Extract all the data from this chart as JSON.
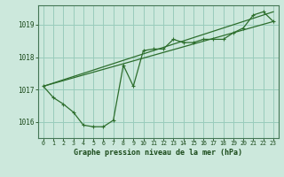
{
  "title": "Graphe pression niveau de la mer (hPa)",
  "bg_color": "#cce8dc",
  "grid_color": "#99ccbb",
  "line_color": "#2d6e2d",
  "marker_color": "#2d6e2d",
  "ylim": [
    1015.5,
    1019.6
  ],
  "yticks": [
    1016,
    1017,
    1018,
    1019
  ],
  "xlim": [
    -0.5,
    23.5
  ],
  "xticks": [
    0,
    1,
    2,
    3,
    4,
    5,
    6,
    7,
    8,
    9,
    10,
    11,
    12,
    13,
    14,
    15,
    16,
    17,
    18,
    19,
    20,
    21,
    22,
    23
  ],
  "series1": {
    "x": [
      0,
      1,
      2,
      3,
      4,
      5,
      6,
      7,
      8,
      9,
      10,
      11,
      12,
      13,
      14,
      15,
      16,
      17,
      18,
      19,
      20,
      21,
      22,
      23
    ],
    "y": [
      1017.1,
      1016.75,
      1016.55,
      1016.3,
      1015.9,
      1015.85,
      1015.85,
      1016.05,
      1017.75,
      1017.1,
      1018.2,
      1018.25,
      1018.25,
      1018.55,
      1018.45,
      1018.45,
      1018.55,
      1018.55,
      1018.55,
      1018.75,
      1018.9,
      1019.3,
      1019.4,
      1019.1
    ]
  },
  "series2_x": [
    0,
    23
  ],
  "series2_y": [
    1017.1,
    1019.1
  ],
  "series3_x": [
    0,
    23
  ],
  "series3_y": [
    1017.1,
    1019.4
  ]
}
